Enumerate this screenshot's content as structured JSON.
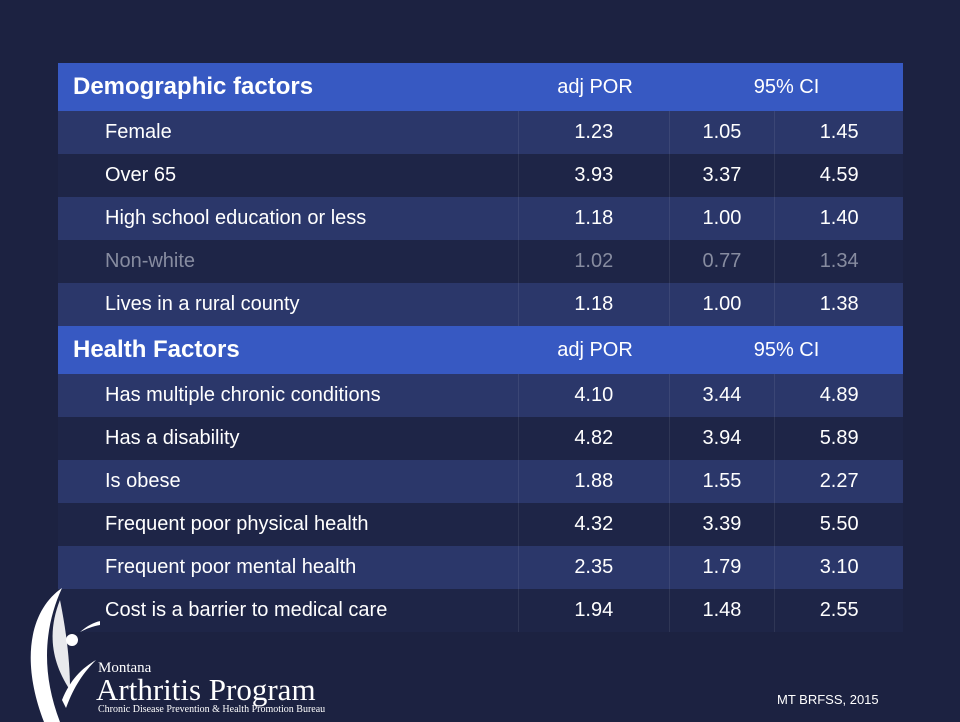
{
  "sections": [
    {
      "title": "Demographic factors",
      "col_por": "adj POR",
      "col_ci": "95% CI",
      "rows": [
        {
          "label": "Female",
          "por": "1.23",
          "ci_low": "1.05",
          "ci_high": "1.45"
        },
        {
          "label": "Over 65",
          "por": "3.93",
          "ci_low": "3.37",
          "ci_high": "4.59"
        },
        {
          "label": "High school education or less",
          "por": "1.18",
          "ci_low": "1.00",
          "ci_high": "1.40"
        },
        {
          "label": "Non-white",
          "por": "1.02",
          "ci_low": "0.77",
          "ci_high": "1.34",
          "muted": true
        },
        {
          "label": "Lives in a rural county",
          "por": "1.18",
          "ci_low": "1.00",
          "ci_high": "1.38"
        }
      ]
    },
    {
      "title": "Health Factors",
      "col_por": "adj POR",
      "col_ci": "95% CI",
      "rows": [
        {
          "label": "Has multiple chronic conditions",
          "por": "4.10",
          "ci_low": "3.44",
          "ci_high": "4.89"
        },
        {
          "label": "Has a disability",
          "por": "4.82",
          "ci_low": "3.94",
          "ci_high": "5.89"
        },
        {
          "label": "Is obese",
          "por": "1.88",
          "ci_low": "1.55",
          "ci_high": "2.27"
        },
        {
          "label": "Frequent poor physical health",
          "por": "4.32",
          "ci_low": "3.39",
          "ci_high": "5.50"
        },
        {
          "label": "Frequent poor mental health",
          "por": "2.35",
          "ci_low": "1.79",
          "ci_high": "3.10"
        },
        {
          "label": "Cost is a barrier to medical care",
          "por": "1.94",
          "ci_low": "1.48",
          "ci_high": "2.55"
        }
      ]
    }
  ],
  "logo": {
    "line1": "Montana",
    "line2": "Arthritis Program",
    "line3": "Chronic Disease Prevention & Health Promotion Bureau"
  },
  "source": "MT BRFSS, 2015"
}
